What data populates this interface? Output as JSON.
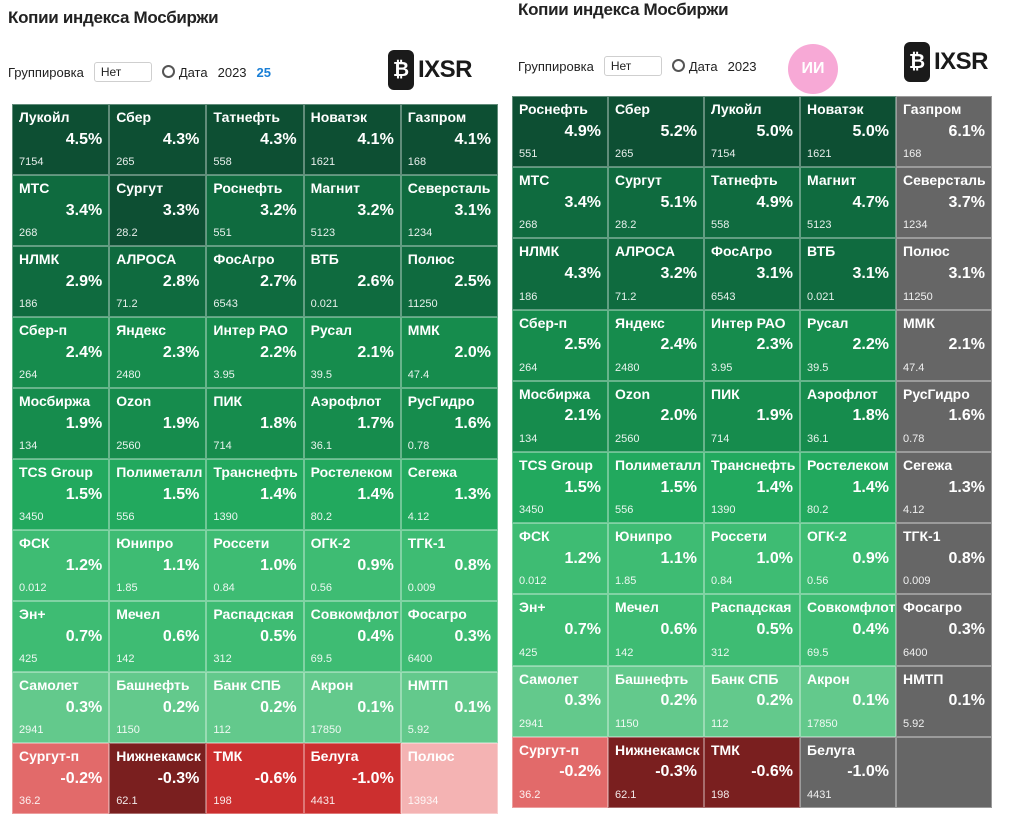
{
  "left": {
    "title": "Копии индекса Мосбиржи",
    "filter1_label": "Группировка",
    "filter1_value": "Нет",
    "filter2_label": "Дата",
    "filter2_value": "2023",
    "filter2_accent": "25",
    "logo": "IXSR",
    "tiles": [
      {
        "name": "Лукойл",
        "price": "7154",
        "change": "4.5%",
        "tone": "g1"
      },
      {
        "name": "Сбер",
        "price": "265",
        "change": "4.3%",
        "tone": "g1"
      },
      {
        "name": "Татнефть",
        "price": "558",
        "change": "4.3%",
        "tone": "g1"
      },
      {
        "name": "Новатэк",
        "price": "1621",
        "change": "4.1%",
        "tone": "g1"
      },
      {
        "name": "Газпром",
        "price": "168",
        "change": "4.1%",
        "tone": "g1"
      },
      {
        "name": "МТС",
        "price": "268",
        "change": "3.4%",
        "tone": "g2"
      },
      {
        "name": "Сургут",
        "price": "28.2",
        "change": "3.3%",
        "tone": "g1"
      },
      {
        "name": "Роснефть",
        "price": "551",
        "change": "3.2%",
        "tone": "g2"
      },
      {
        "name": "Магнит",
        "price": "5123",
        "change": "3.2%",
        "tone": "g2"
      },
      {
        "name": "Северсталь",
        "price": "1234",
        "change": "3.1%",
        "tone": "g2"
      },
      {
        "name": "НЛМК",
        "price": "186",
        "change": "2.9%",
        "tone": "g2"
      },
      {
        "name": "АЛРОСА",
        "price": "71.2",
        "change": "2.8%",
        "tone": "g2"
      },
      {
        "name": "ФосАгро",
        "price": "6543",
        "change": "2.7%",
        "tone": "g2"
      },
      {
        "name": "ВТБ",
        "price": "0.021",
        "change": "2.6%",
        "tone": "g2"
      },
      {
        "name": "Полюс",
        "price": "11250",
        "change": "2.5%",
        "tone": "g2"
      },
      {
        "name": "Сбер-п",
        "price": "264",
        "change": "2.4%",
        "tone": "g3"
      },
      {
        "name": "Яндекс",
        "price": "2480",
        "change": "2.3%",
        "tone": "g3"
      },
      {
        "name": "Интер РАО",
        "price": "3.95",
        "change": "2.2%",
        "tone": "g3"
      },
      {
        "name": "Русал",
        "price": "39.5",
        "change": "2.1%",
        "tone": "g3"
      },
      {
        "name": "ММК",
        "price": "47.4",
        "change": "2.0%",
        "tone": "g3"
      },
      {
        "name": "Мосбиржа",
        "price": "134",
        "change": "1.9%",
        "tone": "g3"
      },
      {
        "name": "Ozon",
        "price": "2560",
        "change": "1.9%",
        "tone": "g3"
      },
      {
        "name": "ПИК",
        "price": "714",
        "change": "1.8%",
        "tone": "g3"
      },
      {
        "name": "Аэрофлот",
        "price": "36.1",
        "change": "1.7%",
        "tone": "g3"
      },
      {
        "name": "РусГидро",
        "price": "0.78",
        "change": "1.6%",
        "tone": "g3"
      },
      {
        "name": "TCS Group",
        "price": "3450",
        "change": "1.5%",
        "tone": "g4"
      },
      {
        "name": "Полиметалл",
        "price": "556",
        "change": "1.5%",
        "tone": "g4"
      },
      {
        "name": "Транснефть",
        "price": "1390",
        "change": "1.4%",
        "tone": "g4"
      },
      {
        "name": "Ростелеком",
        "price": "80.2",
        "change": "1.4%",
        "tone": "g4"
      },
      {
        "name": "Сегежа",
        "price": "4.12",
        "change": "1.3%",
        "tone": "g4"
      },
      {
        "name": "ФСК",
        "price": "0.012",
        "change": "1.2%",
        "tone": "g5"
      },
      {
        "name": "Юнипро",
        "price": "1.85",
        "change": "1.1%",
        "tone": "g5"
      },
      {
        "name": "Россети",
        "price": "0.84",
        "change": "1.0%",
        "tone": "g5"
      },
      {
        "name": "ОГК-2",
        "price": "0.56",
        "change": "0.9%",
        "tone": "g5"
      },
      {
        "name": "ТГК-1",
        "price": "0.009",
        "change": "0.8%",
        "tone": "g5"
      },
      {
        "name": "Эн+",
        "price": "425",
        "change": "0.7%",
        "tone": "g5"
      },
      {
        "name": "Мечел",
        "price": "142",
        "change": "0.6%",
        "tone": "g5"
      },
      {
        "name": "Распадская",
        "price": "312",
        "change": "0.5%",
        "tone": "g5"
      },
      {
        "name": "Совкомфлот",
        "price": "69.5",
        "change": "0.4%",
        "tone": "g5"
      },
      {
        "name": "Фосагро",
        "price": "6400",
        "change": "0.3%",
        "tone": "g5"
      },
      {
        "name": "Самолет",
        "price": "2941",
        "change": "0.3%",
        "tone": "g6"
      },
      {
        "name": "Башнефть",
        "price": "1150",
        "change": "0.2%",
        "tone": "g6"
      },
      {
        "name": "Банк СПБ",
        "price": "112",
        "change": "0.2%",
        "tone": "g6"
      },
      {
        "name": "Акрон",
        "price": "17850",
        "change": "0.1%",
        "tone": "g6"
      },
      {
        "name": "НМТП",
        "price": "5.92",
        "change": "0.1%",
        "tone": "g6"
      },
      {
        "name": "Сургут-п",
        "price": "36.2",
        "change": "-0.2%",
        "tone": "r2"
      },
      {
        "name": "Нижнекамск",
        "price": "62.1",
        "change": "-0.3%",
        "tone": "r4"
      },
      {
        "name": "ТМК",
        "price": "198",
        "change": "-0.6%",
        "tone": "r3"
      },
      {
        "name": "Белуга",
        "price": "4431",
        "change": "-1.0%",
        "tone": "r3"
      },
      {
        "name": "Полюс",
        "price": "13934",
        "change": "",
        "tone": "r1"
      }
    ]
  },
  "right": {
    "title": "Копии индекса Мосбиржи",
    "filter1_label": "Группировка",
    "filter1_value": "Нет",
    "filter2_label": "Дата",
    "filter2_value": "2023",
    "badge": "ИИ",
    "logo": "IXSR",
    "tiles": [
      {
        "name": "Роснефть",
        "price": "551",
        "change": "4.9%",
        "tone": "g1"
      },
      {
        "name": "Сбер",
        "price": "265",
        "change": "5.2%",
        "tone": "g1"
      },
      {
        "name": "Лукойл",
        "price": "7154",
        "change": "5.0%",
        "tone": "g1"
      },
      {
        "name": "Новатэк",
        "price": "1621",
        "change": "5.0%",
        "tone": "g1"
      },
      {
        "name": "Газпром",
        "price": "168",
        "change": "6.1%",
        "tone": "gr"
      },
      {
        "name": "МТС",
        "price": "268",
        "change": "3.4%",
        "tone": "g2"
      },
      {
        "name": "Сургут",
        "price": "28.2",
        "change": "5.1%",
        "tone": "g2"
      },
      {
        "name": "Татнефть",
        "price": "558",
        "change": "4.9%",
        "tone": "g2"
      },
      {
        "name": "Магнит",
        "price": "5123",
        "change": "4.7%",
        "tone": "g2"
      },
      {
        "name": "Северсталь",
        "price": "1234",
        "change": "3.7%",
        "tone": "gr"
      },
      {
        "name": "НЛМК",
        "price": "186",
        "change": "4.3%",
        "tone": "g2"
      },
      {
        "name": "АЛРОСА",
        "price": "71.2",
        "change": "3.2%",
        "tone": "g2"
      },
      {
        "name": "ФосАгро",
        "price": "6543",
        "change": "3.1%",
        "tone": "g2"
      },
      {
        "name": "ВТБ",
        "price": "0.021",
        "change": "3.1%",
        "tone": "g2"
      },
      {
        "name": "Полюс",
        "price": "11250",
        "change": "3.1%",
        "tone": "gr"
      },
      {
        "name": "Сбер-п",
        "price": "264",
        "change": "2.5%",
        "tone": "g3"
      },
      {
        "name": "Яндекс",
        "price": "2480",
        "change": "2.4%",
        "tone": "g3"
      },
      {
        "name": "Интер РАО",
        "price": "3.95",
        "change": "2.3%",
        "tone": "g3"
      },
      {
        "name": "Русал",
        "price": "39.5",
        "change": "2.2%",
        "tone": "g3"
      },
      {
        "name": "ММК",
        "price": "47.4",
        "change": "2.1%",
        "tone": "gr"
      },
      {
        "name": "Мосбиржа",
        "price": "134",
        "change": "2.1%",
        "tone": "g3"
      },
      {
        "name": "Ozon",
        "price": "2560",
        "change": "2.0%",
        "tone": "g3"
      },
      {
        "name": "ПИК",
        "price": "714",
        "change": "1.9%",
        "tone": "g3"
      },
      {
        "name": "Аэрофлот",
        "price": "36.1",
        "change": "1.8%",
        "tone": "g3"
      },
      {
        "name": "РусГидро",
        "price": "0.78",
        "change": "1.6%",
        "tone": "gr"
      },
      {
        "name": "TCS Group",
        "price": "3450",
        "change": "1.5%",
        "tone": "g4"
      },
      {
        "name": "Полиметалл",
        "price": "556",
        "change": "1.5%",
        "tone": "g4"
      },
      {
        "name": "Транснефть",
        "price": "1390",
        "change": "1.4%",
        "tone": "g4"
      },
      {
        "name": "Ростелеком",
        "price": "80.2",
        "change": "1.4%",
        "tone": "g4"
      },
      {
        "name": "Сегежа",
        "price": "4.12",
        "change": "1.3%",
        "tone": "gr"
      },
      {
        "name": "ФСК",
        "price": "0.012",
        "change": "1.2%",
        "tone": "g5"
      },
      {
        "name": "Юнипро",
        "price": "1.85",
        "change": "1.1%",
        "tone": "g5"
      },
      {
        "name": "Россети",
        "price": "0.84",
        "change": "1.0%",
        "tone": "g5"
      },
      {
        "name": "ОГК-2",
        "price": "0.56",
        "change": "0.9%",
        "tone": "g5"
      },
      {
        "name": "ТГК-1",
        "price": "0.009",
        "change": "0.8%",
        "tone": "gr"
      },
      {
        "name": "Эн+",
        "price": "425",
        "change": "0.7%",
        "tone": "g5"
      },
      {
        "name": "Мечел",
        "price": "142",
        "change": "0.6%",
        "tone": "g5"
      },
      {
        "name": "Распадская",
        "price": "312",
        "change": "0.5%",
        "tone": "g5"
      },
      {
        "name": "Совкомфлот",
        "price": "69.5",
        "change": "0.4%",
        "tone": "g5"
      },
      {
        "name": "Фосагро",
        "price": "6400",
        "change": "0.3%",
        "tone": "gr"
      },
      {
        "name": "Самолет",
        "price": "2941",
        "change": "0.3%",
        "tone": "g6"
      },
      {
        "name": "Башнефть",
        "price": "1150",
        "change": "0.2%",
        "tone": "g6"
      },
      {
        "name": "Банк СПБ",
        "price": "112",
        "change": "0.2%",
        "tone": "g6"
      },
      {
        "name": "Акрон",
        "price": "17850",
        "change": "0.1%",
        "tone": "g6"
      },
      {
        "name": "НМТП",
        "price": "5.92",
        "change": "0.1%",
        "tone": "gr"
      },
      {
        "name": "Сургут-п",
        "price": "36.2",
        "change": "-0.2%",
        "tone": "r2"
      },
      {
        "name": "Нижнекамск",
        "price": "62.1",
        "change": "-0.3%",
        "tone": "r4"
      },
      {
        "name": "ТМК",
        "price": "198",
        "change": "-0.6%",
        "tone": "r4"
      },
      {
        "name": "Белуга",
        "price": "4431",
        "change": "-1.0%",
        "tone": "gr"
      },
      {
        "name": "",
        "price": "",
        "change": "",
        "tone": "gr"
      }
    ]
  }
}
